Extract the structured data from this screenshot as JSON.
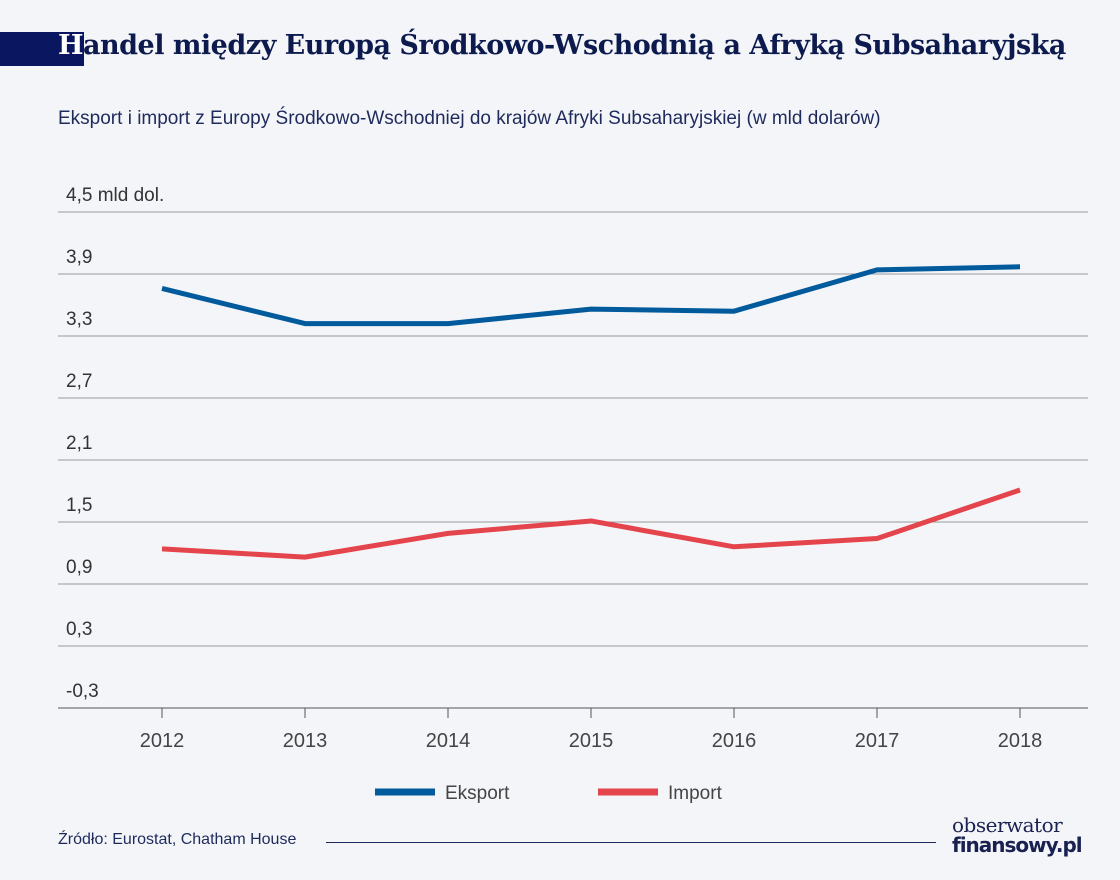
{
  "header": {
    "title_first": "H",
    "title_rest": "andel między Europą Środkowo-Wschodnią a Afryką Subsaharyjską",
    "subtitle": "Eksport i import z Europy Środkowo-Wschodniej do krajów Afryki Subsaharyjskiej (w mld dolarów)"
  },
  "footer": {
    "source": "Źródło: Eurostat, Chatham House",
    "logo_line1": "obserwator",
    "logo_line2": "finansowy.pl"
  },
  "chart_data": {
    "type": "line",
    "title": "Handel między Europą Środkowo-Wschodnią a Afryką Subsaharyjską",
    "ylabel": "mld dol.",
    "x": [
      "2012",
      "2013",
      "2014",
      "2015",
      "2016",
      "2017",
      "2018"
    ],
    "yticks": [
      "4,5 mld dol.",
      "3,9",
      "3,3",
      "2,7",
      "2,1",
      "1,5",
      "0,9",
      "0,3",
      "-0,3"
    ],
    "ytick_values": [
      4.5,
      3.9,
      3.3,
      2.7,
      2.1,
      1.5,
      0.9,
      0.3,
      -0.3
    ],
    "ylim": [
      -0.3,
      4.5
    ],
    "grid": true,
    "legend_position": "bottom",
    "series": [
      {
        "name": "Eksport",
        "color": "#005a9c",
        "values": [
          3.76,
          3.42,
          3.42,
          3.56,
          3.54,
          3.94,
          3.97
        ]
      },
      {
        "name": "Import",
        "color": "#e4444b",
        "values": [
          1.24,
          1.16,
          1.39,
          1.51,
          1.26,
          1.34,
          1.81
        ]
      }
    ]
  }
}
